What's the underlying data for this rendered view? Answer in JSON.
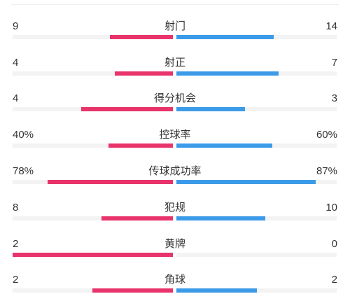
{
  "colors": {
    "home": "#e8336b",
    "away": "#3b9be8",
    "track": "#f3f3f3"
  },
  "stats": [
    {
      "label": "射门",
      "left": "9",
      "right": "14",
      "left_share": 0.391,
      "right_share": 0.609
    },
    {
      "label": "射正",
      "left": "4",
      "right": "7",
      "left_share": 0.364,
      "right_share": 0.636
    },
    {
      "label": "得分机会",
      "left": "4",
      "right": "3",
      "left_share": 0.571,
      "right_share": 0.429
    },
    {
      "label": "控球率",
      "left": "40%",
      "right": "60%",
      "left_share": 0.4,
      "right_share": 0.6
    },
    {
      "label": "传球成功率",
      "left": "78%",
      "right": "87%",
      "left_share": 0.78,
      "right_share": 0.87
    },
    {
      "label": "犯规",
      "left": "8",
      "right": "10",
      "left_share": 0.444,
      "right_share": 0.556
    },
    {
      "label": "黄牌",
      "left": "2",
      "right": "0",
      "left_share": 1.0,
      "right_share": 0.0
    },
    {
      "label": "角球",
      "left": "2",
      "right": "2",
      "left_share": 0.5,
      "right_share": 0.5
    }
  ]
}
